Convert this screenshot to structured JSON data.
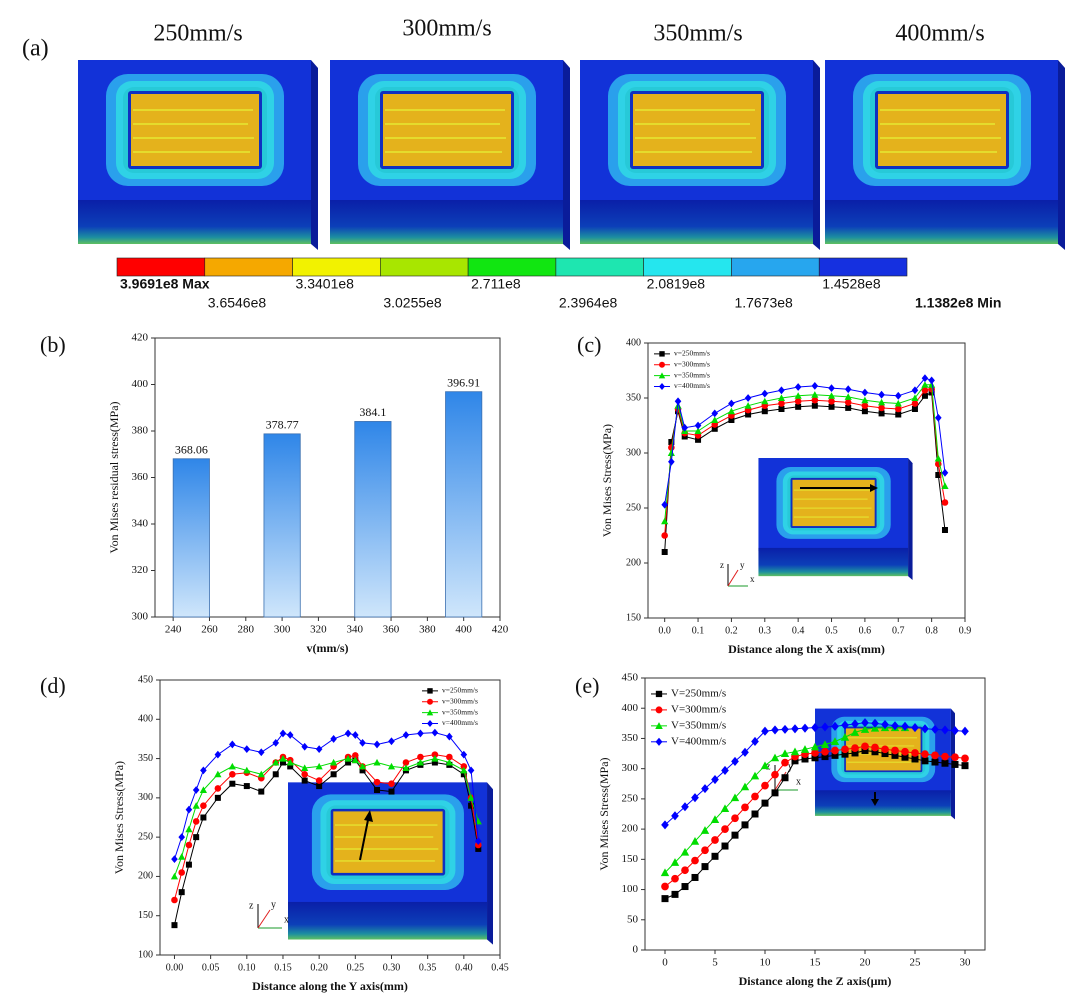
{
  "panel_labels": [
    "(a)",
    "(b)",
    "(c)",
    "(d)",
    "(e)"
  ],
  "panel_a": {
    "speeds": [
      "250mm/s",
      "300mm/s",
      "350mm/s",
      "400mm/s"
    ],
    "colorbar": {
      "colors": [
        "#ff0000",
        "#f5a800",
        "#f2f200",
        "#a8e600",
        "#11e611",
        "#1ee6b0",
        "#25e6ee",
        "#27a6ee",
        "#1530e0"
      ],
      "labels_top": [
        "3.9691e8 Max",
        "3.3401e8",
        "2.711e8",
        "2.0819e8",
        "1.4528e8"
      ],
      "labels_bottom": [
        "3.6546e8",
        "3.0255e8",
        "2.3964e8",
        "1.7673e8",
        "1.1382e8 Min"
      ]
    }
  },
  "inset_axis_labels": [
    "z",
    "y",
    "x"
  ],
  "chart_data": [
    {
      "type": "bar",
      "xlabel": "v(mm/s)",
      "ylabel": "Von Mises residual stress(MPa)",
      "x": [
        250,
        300,
        350,
        400
      ],
      "values": [
        368.06,
        378.77,
        384.1,
        396.91
      ],
      "color": "#3d8fe6",
      "xlim": [
        230,
        420
      ],
      "xticks": [
        240,
        260,
        280,
        300,
        320,
        340,
        360,
        380,
        400,
        420
      ],
      "ylim": [
        300,
        420
      ],
      "yticks": [
        300,
        320,
        340,
        360,
        380,
        400,
        420
      ]
    },
    {
      "type": "line",
      "xlabel": "Distance along the X axis(mm)",
      "ylabel": "Von Mises Stress(MPa)",
      "legend": "upper left",
      "x": [
        0,
        0.02,
        0.04,
        0.06,
        0.1,
        0.15,
        0.2,
        0.25,
        0.3,
        0.35,
        0.4,
        0.45,
        0.5,
        0.55,
        0.6,
        0.65,
        0.7,
        0.75,
        0.78,
        0.8,
        0.82,
        0.84
      ],
      "series": [
        {
          "name": "v=250mm/s",
          "color": "#000000",
          "marker": "s",
          "values": [
            210,
            310,
            338,
            315,
            312,
            322,
            330,
            335,
            338,
            340,
            342,
            343,
            342,
            341,
            338,
            336,
            335,
            340,
            352,
            355,
            280,
            230
          ]
        },
        {
          "name": "v=300mm/s",
          "color": "#ff0000",
          "marker": "o",
          "values": [
            225,
            305,
            340,
            318,
            316,
            326,
            334,
            339,
            343,
            345,
            347,
            348,
            347,
            346,
            343,
            341,
            340,
            345,
            357,
            358,
            290,
            255
          ]
        },
        {
          "name": "v=350mm/s",
          "color": "#00dd00",
          "marker": "^",
          "values": [
            238,
            300,
            343,
            320,
            320,
            330,
            338,
            343,
            347,
            350,
            352,
            353,
            352,
            351,
            348,
            346,
            345,
            350,
            362,
            362,
            295,
            270
          ]
        },
        {
          "name": "v=400mm/s",
          "color": "#0000ff",
          "marker": "D",
          "values": [
            253,
            292,
            347,
            323,
            325,
            336,
            345,
            350,
            354,
            357,
            360,
            361,
            359,
            358,
            355,
            353,
            352,
            357,
            368,
            366,
            332,
            282
          ]
        }
      ],
      "xlim": [
        -0.05,
        0.9
      ],
      "xticks": [
        {
          "value": 0,
          "label": "0.0"
        },
        0.1,
        0.2,
        0.3,
        0.4,
        0.5,
        0.6,
        0.7,
        0.8,
        0.9
      ],
      "ylim": [
        150,
        400
      ],
      "yticks": [
        150,
        200,
        250,
        300,
        350,
        400
      ]
    },
    {
      "type": "line",
      "xlabel": "Distance along the Y axis(mm)",
      "ylabel": "Von Mises Stress(MPa)",
      "legend": "upper right",
      "x": [
        0,
        0.01,
        0.02,
        0.03,
        0.04,
        0.06,
        0.08,
        0.1,
        0.12,
        0.14,
        0.15,
        0.16,
        0.18,
        0.2,
        0.22,
        0.24,
        0.25,
        0.26,
        0.28,
        0.3,
        0.32,
        0.34,
        0.36,
        0.38,
        0.4,
        0.41,
        0.42
      ],
      "series": [
        {
          "name": "v=250mm/s",
          "color": "#000000",
          "marker": "s",
          "values": [
            138,
            180,
            215,
            250,
            275,
            300,
            318,
            315,
            308,
            330,
            345,
            340,
            322,
            315,
            330,
            345,
            348,
            335,
            310,
            308,
            335,
            342,
            345,
            342,
            330,
            290,
            235
          ]
        },
        {
          "name": "v=300mm/s",
          "color": "#ff0000",
          "marker": "o",
          "values": [
            170,
            205,
            240,
            270,
            290,
            312,
            330,
            332,
            325,
            345,
            352,
            348,
            330,
            322,
            340,
            352,
            354,
            340,
            320,
            318,
            345,
            352,
            355,
            352,
            340,
            300,
            240
          ]
        },
        {
          "name": "v=350mm/s",
          "color": "#00dd00",
          "marker": "^",
          "values": [
            200,
            225,
            260,
            290,
            310,
            330,
            340,
            335,
            330,
            345,
            350,
            345,
            338,
            340,
            345,
            350,
            348,
            340,
            345,
            340,
            338,
            345,
            350,
            345,
            335,
            300,
            270
          ]
        },
        {
          "name": "v=400mm/s",
          "color": "#0000ff",
          "marker": "D",
          "values": [
            222,
            250,
            285,
            310,
            335,
            355,
            368,
            362,
            358,
            370,
            382,
            380,
            365,
            362,
            375,
            382,
            380,
            370,
            368,
            372,
            380,
            382,
            383,
            378,
            355,
            335,
            245
          ]
        }
      ],
      "xlim": [
        -0.02,
        0.45
      ],
      "xticks": [
        {
          "value": 0,
          "label": "0.00"
        },
        0.05,
        {
          "value": 0.1,
          "label": "0.10"
        },
        0.15,
        {
          "value": 0.2,
          "label": "0.20"
        },
        0.25,
        {
          "value": 0.3,
          "label": "0.30"
        },
        0.35,
        {
          "value": 0.4,
          "label": "0.40"
        },
        0.45
      ],
      "ylim": [
        100,
        450
      ],
      "yticks": [
        100,
        150,
        200,
        250,
        300,
        350,
        400,
        450
      ]
    },
    {
      "type": "line",
      "xlabel": "Distance along the Z axis(μm)",
      "ylabel": "Von Mises Stress(MPa)",
      "legend": "upper left",
      "x": [
        0,
        1,
        2,
        3,
        4,
        5,
        6,
        7,
        8,
        9,
        10,
        11,
        12,
        13,
        14,
        15,
        16,
        17,
        18,
        19,
        20,
        21,
        22,
        23,
        24,
        25,
        26,
        27,
        28,
        29,
        30
      ],
      "series": [
        {
          "name": "V=250mm/s",
          "color": "#000000",
          "marker": "s",
          "values": [
            85,
            92,
            105,
            120,
            138,
            155,
            172,
            190,
            207,
            225,
            243,
            260,
            285,
            313,
            316,
            318,
            320,
            322,
            324,
            326,
            330,
            328,
            325,
            322,
            319,
            316,
            313,
            311,
            309,
            307,
            305
          ]
        },
        {
          "name": "V=300mm/s",
          "color": "#ff0000",
          "marker": "o",
          "values": [
            105,
            118,
            132,
            148,
            165,
            182,
            200,
            218,
            236,
            254,
            272,
            290,
            310,
            320,
            324,
            326,
            328,
            330,
            332,
            334,
            337,
            335,
            332,
            330,
            328,
            326,
            324,
            322,
            320,
            319,
            317
          ]
        },
        {
          "name": "V=350mm/s",
          "color": "#00dd00",
          "marker": "^",
          "values": [
            128,
            145,
            162,
            180,
            198,
            216,
            234,
            252,
            270,
            288,
            305,
            318,
            325,
            328,
            332,
            336,
            340,
            345,
            352,
            360,
            365,
            367,
            368,
            368,
            368,
            null,
            null,
            null,
            null,
            null,
            null
          ]
        },
        {
          "name": "V=400mm/s",
          "color": "#0000ff",
          "marker": "D",
          "values": [
            207,
            222,
            237,
            252,
            267,
            282,
            297,
            312,
            327,
            345,
            362,
            364,
            365,
            366,
            367,
            368,
            369,
            370,
            372,
            374,
            376,
            375,
            373,
            371,
            370,
            368,
            366,
            365,
            364,
            363,
            362
          ]
        }
      ],
      "xlim": [
        -2,
        32
      ],
      "xticks": [
        0,
        5,
        10,
        15,
        20,
        25,
        30
      ],
      "ylim": [
        0,
        450
      ],
      "yticks": [
        0,
        50,
        100,
        150,
        200,
        250,
        300,
        350,
        400,
        450
      ]
    }
  ]
}
